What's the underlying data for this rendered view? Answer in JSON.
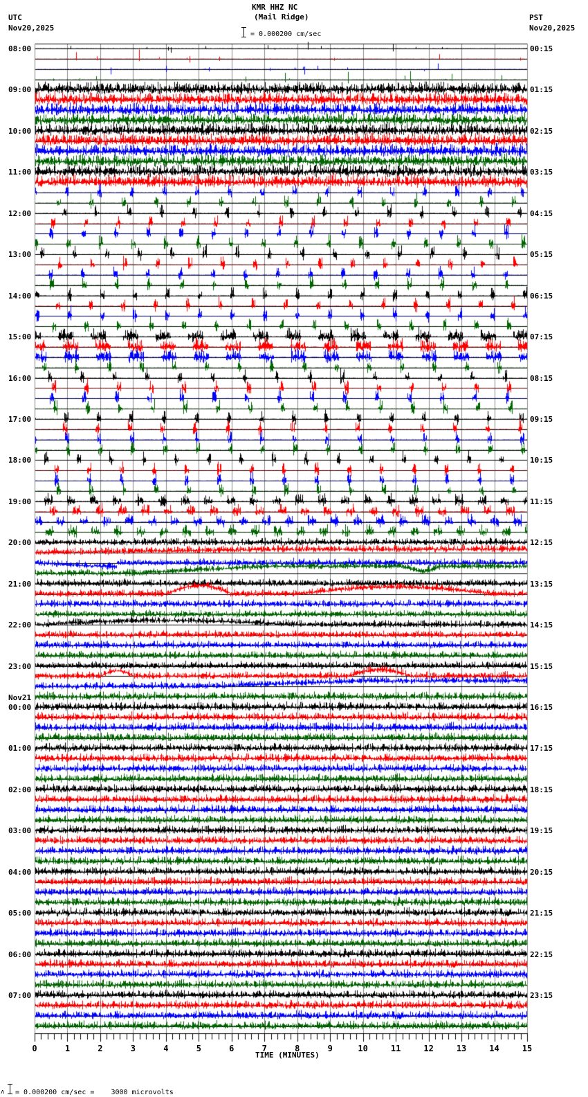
{
  "header": {
    "station": "KMR HHZ NC",
    "site": "(Mail Ridge)",
    "left_tz": "UTC",
    "left_date": "Nov20,2025",
    "right_tz": "PST",
    "right_date": "Nov20,2025",
    "scale_text": "= 0.000200 cm/sec"
  },
  "footer": {
    "scale_text": "= 0.000200 cm/sec =    3000 microvolts",
    "prefix_glyph": "ʌ"
  },
  "chart_data": {
    "type": "line",
    "title": "KMR HHZ NC (Mail Ridge)",
    "subtitle": "Helicorder seismogram, 15-minute traces, 0.000200 cm/sec scale",
    "xlabel": "TIME (MINUTES)",
    "ylabel": "",
    "x_ticks": [
      "0",
      "1",
      "2",
      "3",
      "4",
      "5",
      "6",
      "7",
      "8",
      "9",
      "10",
      "11",
      "12",
      "13",
      "14",
      "15"
    ],
    "xlim": [
      0,
      15
    ],
    "minor_ticks_per_minute": 5,
    "grid": true,
    "trace_count": 96,
    "trace_minutes": 15,
    "trace_colors": [
      "#000000",
      "#ff0000",
      "#0000ff",
      "#006400"
    ],
    "left_labels": [
      {
        "row": 0,
        "label": "08:00"
      },
      {
        "row": 4,
        "label": "09:00"
      },
      {
        "row": 8,
        "label": "10:00"
      },
      {
        "row": 12,
        "label": "11:00"
      },
      {
        "row": 16,
        "label": "12:00"
      },
      {
        "row": 20,
        "label": "13:00"
      },
      {
        "row": 24,
        "label": "14:00"
      },
      {
        "row": 28,
        "label": "15:00"
      },
      {
        "row": 32,
        "label": "16:00"
      },
      {
        "row": 36,
        "label": "17:00"
      },
      {
        "row": 40,
        "label": "18:00"
      },
      {
        "row": 44,
        "label": "19:00"
      },
      {
        "row": 48,
        "label": "20:00"
      },
      {
        "row": 52,
        "label": "21:00"
      },
      {
        "row": 56,
        "label": "22:00"
      },
      {
        "row": 60,
        "label": "23:00"
      },
      {
        "row": 64,
        "label": "00:00",
        "date": "Nov21"
      },
      {
        "row": 68,
        "label": "01:00"
      },
      {
        "row": 72,
        "label": "02:00"
      },
      {
        "row": 76,
        "label": "03:00"
      },
      {
        "row": 80,
        "label": "04:00"
      },
      {
        "row": 84,
        "label": "05:00"
      },
      {
        "row": 88,
        "label": "06:00"
      },
      {
        "row": 92,
        "label": "07:00"
      }
    ],
    "right_labels": [
      {
        "row": 0,
        "label": "00:15"
      },
      {
        "row": 4,
        "label": "01:15"
      },
      {
        "row": 8,
        "label": "02:15"
      },
      {
        "row": 12,
        "label": "03:15"
      },
      {
        "row": 16,
        "label": "04:15"
      },
      {
        "row": 20,
        "label": "05:15"
      },
      {
        "row": 24,
        "label": "06:15"
      },
      {
        "row": 28,
        "label": "07:15"
      },
      {
        "row": 32,
        "label": "08:15"
      },
      {
        "row": 36,
        "label": "09:15"
      },
      {
        "row": 40,
        "label": "10:15"
      },
      {
        "row": 44,
        "label": "11:15"
      },
      {
        "row": 48,
        "label": "12:15"
      },
      {
        "row": 52,
        "label": "13:15"
      },
      {
        "row": 56,
        "label": "14:15"
      },
      {
        "row": 60,
        "label": "15:15"
      },
      {
        "row": 64,
        "label": "16:15"
      },
      {
        "row": 68,
        "label": "17:15"
      },
      {
        "row": 72,
        "label": "18:15"
      },
      {
        "row": 76,
        "label": "19:15"
      },
      {
        "row": 80,
        "label": "20:15"
      },
      {
        "row": 84,
        "label": "21:15"
      },
      {
        "row": 88,
        "label": "22:15"
      },
      {
        "row": 92,
        "label": "23:15"
      }
    ],
    "activity_segments": [
      {
        "rows": [
          0,
          3
        ],
        "mode": "sparse_bursts",
        "level": 0.3
      },
      {
        "rows": [
          4,
          13
        ],
        "mode": "continuous_noisy",
        "level": 0.9
      },
      {
        "rows": [
          14,
          27
        ],
        "mode": "periodic_bursts",
        "level": 0.6
      },
      {
        "rows": [
          28,
          30
        ],
        "mode": "dense_bursts",
        "level": 0.8
      },
      {
        "rows": [
          31,
          43
        ],
        "mode": "periodic_bursts",
        "level": 0.6
      },
      {
        "rows": [
          44,
          47
        ],
        "mode": "mixed_bursts",
        "level": 0.6
      },
      {
        "rows": [
          48,
          62
        ],
        "mode": "noise_with_drift",
        "level": 0.5
      },
      {
        "rows": [
          63,
          95
        ],
        "mode": "continuous_noise",
        "level": 0.55
      }
    ],
    "long_period_drifts": [
      {
        "row": 49,
        "from_min": 0,
        "to_min": 15,
        "shape": "rise",
        "amp": 5
      },
      {
        "row": 50,
        "from_min": 0,
        "to_min": 2.5,
        "shape": "drop",
        "amp": 6
      },
      {
        "row": 51,
        "from_min": 3,
        "to_min": 15,
        "shape": "rise_dip12",
        "amp": 10
      },
      {
        "row": 53,
        "from_min": 4,
        "to_min": 6,
        "shape": "bump",
        "amp": 12
      },
      {
        "row": 53,
        "from_min": 8,
        "to_min": 14,
        "shape": "bump",
        "amp": 10
      },
      {
        "row": 56,
        "from_min": 0,
        "to_min": 8,
        "shape": "bump",
        "amp": 6
      },
      {
        "row": 61,
        "from_min": 2,
        "to_min": 3,
        "shape": "bump",
        "amp": 8
      },
      {
        "row": 61,
        "from_min": 9.5,
        "to_min": 11.5,
        "shape": "bump",
        "amp": 9
      },
      {
        "row": 62,
        "from_min": 5,
        "to_min": 15,
        "shape": "rise",
        "amp": 8
      }
    ]
  }
}
